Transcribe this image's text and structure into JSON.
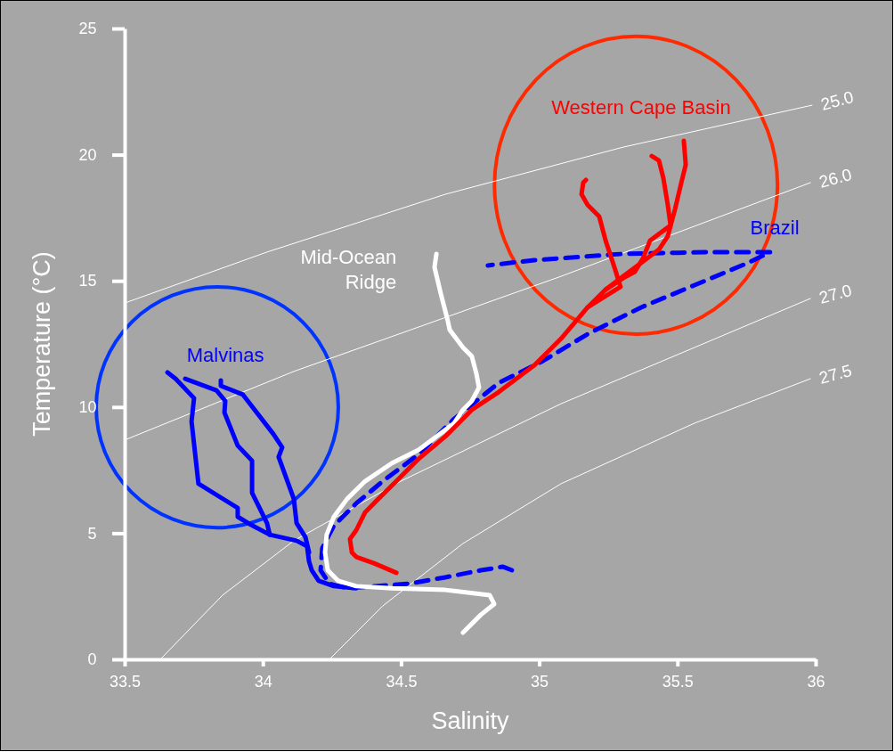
{
  "chart_data": {
    "type": "line",
    "xlabel": "Salinity",
    "ylabel": "Temperature (°C)",
    "xlim": [
      33.5,
      36
    ],
    "xticks": [
      33.5,
      34,
      34.5,
      35,
      35.5,
      36
    ],
    "ylim": [
      0,
      25
    ],
    "yticks": [
      0,
      5,
      10,
      15,
      20,
      25
    ],
    "grid": false,
    "marker": "none",
    "series": [
      {
        "name": "25.0",
        "color": "#ffffff",
        "x": [
          33.5,
          34.015,
          34.66,
          35.304,
          35.987
        ],
        "values": [
          14.12,
          16.14,
          18.43,
          20.3,
          21.96
        ]
      },
      {
        "name": "26.0",
        "color": "#ffffff",
        "x": [
          33.5,
          34.112,
          35.079,
          35.981
        ],
        "values": [
          8.69,
          11.41,
          15.18,
          18.89
        ]
      },
      {
        "name": "27.0",
        "color": "#ffffff",
        "x": [
          33.629,
          33.854,
          34.112,
          34.499,
          35.079,
          35.562,
          35.981
        ],
        "values": [
          0,
          2.54,
          4.7,
          7.06,
          10.13,
          12.36,
          14.3
        ]
      },
      {
        "name": "27.5",
        "color": "#ffffff",
        "x": [
          34.241,
          34.434,
          34.724,
          35.079,
          35.562,
          35.981
        ],
        "values": [
          0,
          2.12,
          4.59,
          6.96,
          9.36,
          11.12
        ]
      },
      {
        "color": "#0000ff",
        "x": [
          33.655,
          33.684,
          33.751,
          33.742,
          33.767,
          33.909,
          33.909,
          33.951,
          34.025,
          34.122,
          34.16,
          34.167,
          34.177,
          34.202,
          34.257,
          34.338
        ],
        "values": [
          11.37,
          11.12,
          10.35,
          9.43,
          6.96,
          6,
          5.65,
          5.37,
          4.94,
          4.7,
          4.48,
          3.88,
          3.53,
          3.11,
          2.9,
          2.82
        ]
      },
      {
        "color": "#0000ff",
        "x": [
          33.719,
          33.832,
          33.864,
          33.861,
          33.909,
          33.961,
          33.961,
          34.015,
          34.025
        ],
        "values": [
          11.12,
          10.66,
          10.24,
          9.78,
          8.47,
          7.87,
          6.6,
          5.4,
          4.94
        ]
      },
      {
        "color": "#0000ff",
        "x": [
          33.848,
          33.848,
          33.928,
          34.038,
          34.07,
          34.057,
          34.112,
          34.122,
          34.154,
          34.167
        ],
        "values": [
          11.05,
          10.84,
          10.49,
          8.93,
          8.4,
          8.02,
          6.36,
          5.4,
          4.84,
          4.24
        ]
      },
      {
        "color": "#0000ff",
        "line_style": "dashed",
        "x": [
          34.901,
          34.869,
          34.789,
          34.66,
          34.531,
          34.402,
          34.305,
          34.241,
          34.209,
          34.215,
          34.257,
          34.338,
          34.434,
          34.563,
          34.692,
          34.853,
          35.014,
          35.175,
          35.369,
          35.562,
          35.755,
          35.836,
          35.626,
          35.304,
          34.982,
          34.814
        ],
        "values": [
          3.53,
          3.67,
          3.53,
          3.25,
          3,
          2.9,
          2.82,
          3,
          3.53,
          4.41,
          5.3,
          6.18,
          7.06,
          8.12,
          9.53,
          10.95,
          11.83,
          12.89,
          13.95,
          14.83,
          15.71,
          16.14,
          16.14,
          16.07,
          15.82,
          15.61
        ]
      },
      {
        "color": "#ffffff",
        "x": [
          34.628,
          34.621,
          34.644,
          34.669,
          34.676,
          34.724,
          34.756,
          34.773,
          34.782,
          34.756,
          34.724,
          34.692,
          34.628,
          34.563,
          34.466,
          34.37,
          34.305,
          34.257,
          34.231,
          34.225,
          34.235,
          34.273,
          34.338,
          34.466,
          34.66,
          34.821,
          34.837,
          34.789,
          34.724
        ],
        "values": [
          16.07,
          15.54,
          14.48,
          13.42,
          13.06,
          12.36,
          12.01,
          11.3,
          10.77,
          10.24,
          9.89,
          9.36,
          8.83,
          8.3,
          7.77,
          7.06,
          6.36,
          5.65,
          4.94,
          4.24,
          3.53,
          3.11,
          2.9,
          2.82,
          2.75,
          2.54,
          2.19,
          1.77,
          1.06
        ]
      },
      {
        "color": "#ff0000",
        "x": [
          34.483,
          34.402,
          34.338,
          34.322,
          34.315,
          34.338,
          34.37,
          34.418,
          34.483,
          34.563,
          34.66,
          34.756,
          34.853,
          34.982,
          35.079,
          35.175,
          35.24,
          35.304,
          35.369,
          35.433,
          35.465,
          35.491,
          35.514,
          35.53,
          35.523
        ],
        "values": [
          3.43,
          3.81,
          4.06,
          4.24,
          4.77,
          5.12,
          5.83,
          6.36,
          7.06,
          7.94,
          8.83,
          9.89,
          10.59,
          11.65,
          12.71,
          13.95,
          14.65,
          15.18,
          15.71,
          16.24,
          16.77,
          17.83,
          18.89,
          19.6,
          20.55
        ]
      },
      {
        "color": "#ff0000",
        "x": [
          35.175,
          35.294,
          35.272,
          35.24,
          35.217,
          35.175,
          35.153,
          35.159,
          35.169
        ],
        "values": [
          13.95,
          14.76,
          15.54,
          16.6,
          17.55,
          18.01,
          18.43,
          18.89,
          19
        ]
      },
      {
        "color": "#ff0000",
        "x": [
          35.24,
          35.304,
          35.346,
          35.375,
          35.401,
          35.475,
          35.465,
          35.449,
          35.433,
          35.407
        ],
        "values": [
          14.65,
          15.11,
          15.36,
          15.89,
          16.6,
          17.2,
          18.01,
          19.07,
          19.77,
          19.95
        ]
      }
    ],
    "annotations": [
      "Malvinas",
      "Mid-Ocean Ridge",
      "Western Cape Basin",
      "Brazil"
    ]
  }
}
